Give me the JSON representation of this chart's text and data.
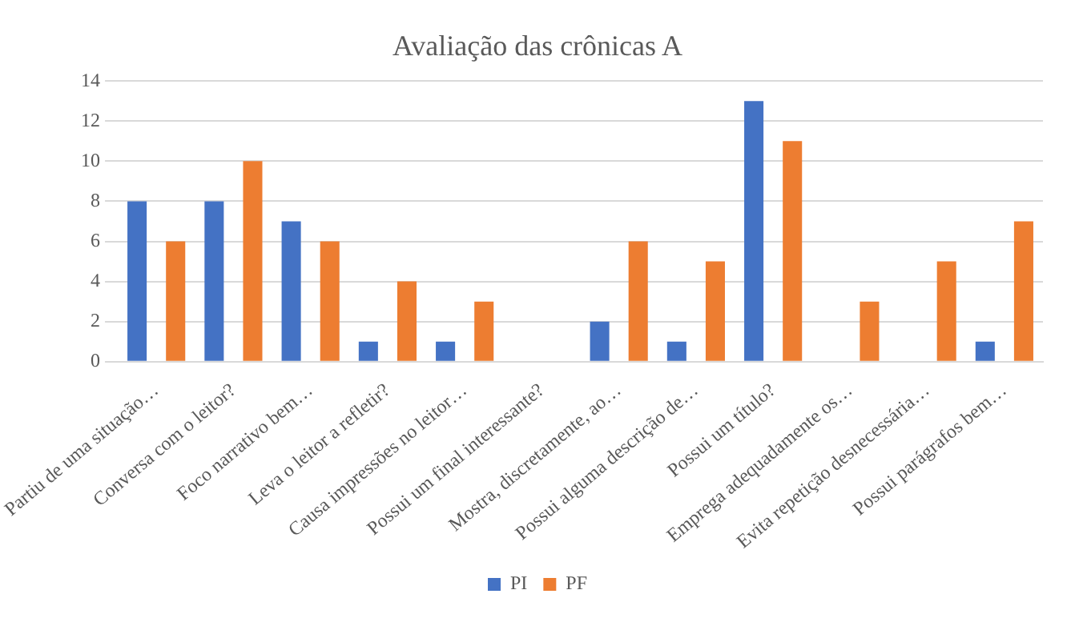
{
  "chart_data": {
    "type": "bar",
    "title": "Avaliação das crônicas A",
    "categories": [
      "Partiu de uma situação…",
      "Conversa com o leitor?",
      "Foco narrativo bem…",
      "Leva o leitor a refletir?",
      "Causa impressões no leitor…",
      "Possui um final interessante?",
      "Mostra, discretamente, ao…",
      "Possui alguma descrição de…",
      "Possui um título?",
      "Emprega adequadamente os…",
      "Evita repetição desnecessária…",
      "Possui parágrafos bem…"
    ],
    "series": [
      {
        "name": "PI",
        "color": "#4472c4",
        "values": [
          8,
          8,
          7,
          1,
          1,
          0,
          2,
          1,
          13,
          0,
          0,
          1
        ]
      },
      {
        "name": "PF",
        "color": "#ed7d31",
        "values": [
          6,
          10,
          6,
          4,
          3,
          0,
          6,
          5,
          11,
          3,
          5,
          7
        ]
      }
    ],
    "ylim": [
      0,
      14
    ],
    "yticks": [
      0,
      2,
      4,
      6,
      8,
      10,
      12,
      14
    ],
    "grid": "y",
    "legend": "bottom"
  }
}
